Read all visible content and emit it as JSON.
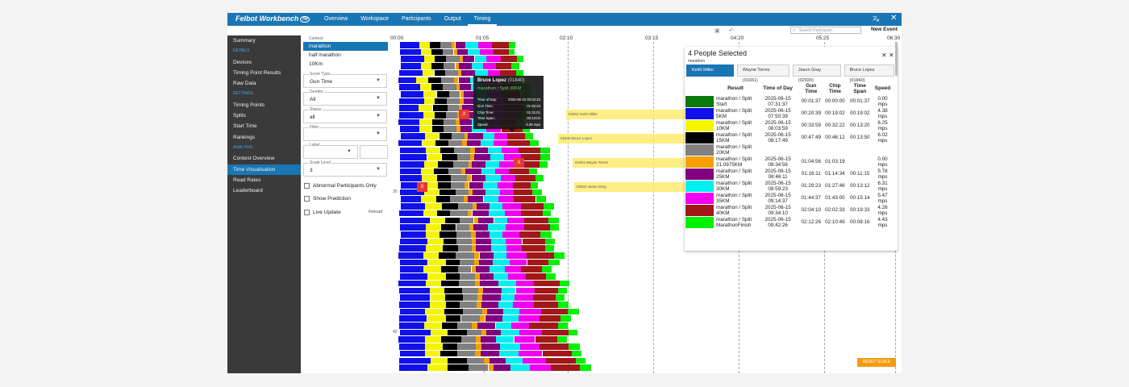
{
  "header": {
    "logo_text": "Felbot Workbench",
    "logo_badge": "TM",
    "nav": [
      "Overview",
      "Workspace",
      "Participants",
      "Output",
      "Timing"
    ],
    "active_nav": "Timing",
    "icons": [
      "translate-icon",
      "close-icon"
    ]
  },
  "sidebar": {
    "items": [
      {
        "type": "item",
        "label": "Summary"
      },
      {
        "type": "head",
        "label": "DETAILS"
      },
      {
        "type": "item",
        "label": "Devices"
      },
      {
        "type": "item",
        "label": "Timing Point Results"
      },
      {
        "type": "item",
        "label": "Raw Data"
      },
      {
        "type": "head",
        "label": "SETTINGS"
      },
      {
        "type": "item",
        "label": "Timing Points"
      },
      {
        "type": "item",
        "label": "Splits"
      },
      {
        "type": "item",
        "label": "Start Time"
      },
      {
        "type": "item",
        "label": "Rankings"
      },
      {
        "type": "head",
        "label": "ANALYSIS"
      },
      {
        "type": "item",
        "label": "Contest Overview"
      },
      {
        "type": "item",
        "label": "Time Visualisation",
        "active": true
      },
      {
        "type": "item",
        "label": "Read Rates"
      },
      {
        "type": "item",
        "label": "Leaderboard"
      }
    ]
  },
  "filters": {
    "contest_label": "Contest",
    "contests": [
      "marathon",
      "half marathon",
      "10Km"
    ],
    "selected_contest": "marathon",
    "score_type_label": "Score Type",
    "score_type": "Gun Time",
    "gender_label": "Gender",
    "gender": "All",
    "status_label": "Status",
    "status": "all",
    "filter_label": "Filter",
    "filter_value": "",
    "label_label": "Label",
    "scale_label": "Scale Level",
    "scale": "3",
    "abnormal_label": "Abnormal Participants Only",
    "prediction_label": "Show Prediction",
    "live_label": "Live Update",
    "reload_label": "Reload"
  },
  "toolbar": {
    "search_placeholder": "Search Participant",
    "new_event": "New Event"
  },
  "plot": {
    "x_ticks": [
      "00:00",
      "01:05",
      "02:10",
      "03:15",
      "04:20",
      "05:25",
      "06:30"
    ],
    "y_labels": [
      "20",
      "40"
    ],
    "highlights": [
      "02602 Keith Miller",
      "01840 Bruce Lopez",
      "01651 Wayne Torres",
      "02920 Jason Gray"
    ],
    "x_mark": "X",
    "reset_label": "RESET SCALE"
  },
  "tooltip": {
    "name": "Bruce Lopez",
    "bib": "(01840)",
    "subtitle": "marathon / Split 30KM",
    "rows": [
      {
        "k": "Time of Day:",
        "v": "2025-06-15 00:02:23"
      },
      {
        "k": "Gun Time:",
        "v": "01:32:23"
      },
      {
        "k": "Chip Time:",
        "v": "01:31:01"
      },
      {
        "k": "Time Span:",
        "v": "00:13:04"
      },
      {
        "k": "Speed:",
        "v": "6.38 mps"
      }
    ]
  },
  "panel": {
    "title": "4 People Selected",
    "subtitle": "marathon",
    "chips": [
      "Keith Miller (02602)",
      "Wayne Torres (01651)",
      "Jason Gray (02920)",
      "Bruce Lopez (01840)"
    ],
    "columns": [
      "Result",
      "Time of Day",
      "Gun Time",
      "Chip Time",
      "Time Span",
      "Speed"
    ],
    "rows": [
      {
        "color": "#0a7a0a",
        "result": "marathon / Split Start",
        "tod": "2025-06-15 07:31:37",
        "gun": "00:01:37",
        "chip": "00:00:00",
        "span": "00:01:37",
        "speed": "0.00 mps"
      },
      {
        "color": "#1010e8",
        "result": "marathon / Split 5KM",
        "tod": "2025-06-15 07:50:39",
        "gun": "00:20:39",
        "chip": "00:19:02",
        "span": "00:19:02",
        "speed": "4.38 mps"
      },
      {
        "color": "#f5f500",
        "result": "marathon / Split 10KM",
        "tod": "2025-06-15 08:03:59",
        "gun": "00:33:59",
        "chip": "00:32:22",
        "span": "00:13:20",
        "speed": "6.25 mps"
      },
      {
        "color": "#000000",
        "result": "marathon / Split 15KM",
        "tod": "2025-06-15 08:17:49",
        "gun": "00:47:49",
        "chip": "00:46:12",
        "span": "00:13:50",
        "speed": "6.02 mps"
      },
      {
        "color": "#808080",
        "result": "marathon / Split 20KM",
        "tod": "",
        "gun": "",
        "chip": "",
        "span": "",
        "speed": ""
      },
      {
        "color": "#f5a000",
        "result": "marathon / Split 21.0975KM",
        "tod": "2025-06-15 08:34:56",
        "gun": "01:04:56",
        "chip": "01:03:19",
        "span": "",
        "speed": "0.00 mps"
      },
      {
        "color": "#800080",
        "result": "marathon / Split 25KM",
        "tod": "2025-06-15 08:46:11",
        "gun": "01:16:11",
        "chip": "01:14:34",
        "span": "00:11:15",
        "speed": "5.78 mps"
      },
      {
        "color": "#00f0f0",
        "result": "marathon / Split 30KM",
        "tod": "2025-06-15 08:59:23",
        "gun": "01:29:23",
        "chip": "01:27:46",
        "span": "00:13:12",
        "speed": "6.31 mps"
      },
      {
        "color": "#f000f0",
        "result": "marathon / Split 35KM",
        "tod": "2025-06-15 09:14:37",
        "gun": "01:44:37",
        "chip": "01:43:00",
        "span": "00:15:14",
        "speed": "5.47 mps"
      },
      {
        "color": "#a01818",
        "result": "marathon / Split 40KM",
        "tod": "2025-06-15 09:34:10",
        "gun": "02:04:10",
        "chip": "02:02:33",
        "span": "00:19:33",
        "speed": "4.26 mps"
      },
      {
        "color": "#00f000",
        "result": "marathon / Split MarathonFinish",
        "tod": "2025-06-15 09:42:26",
        "gun": "02:12:26",
        "chip": "02:10:49",
        "span": "00:08:16",
        "speed": "4.43 mps"
      }
    ]
  },
  "colors": {
    "accent": "#1976b4",
    "segments": [
      "#1010e8",
      "#f5f500",
      "#000000",
      "#808080",
      "#f5a000",
      "#800080",
      "#00f0f0",
      "#f000f0",
      "#a01818",
      "#00f000"
    ]
  }
}
